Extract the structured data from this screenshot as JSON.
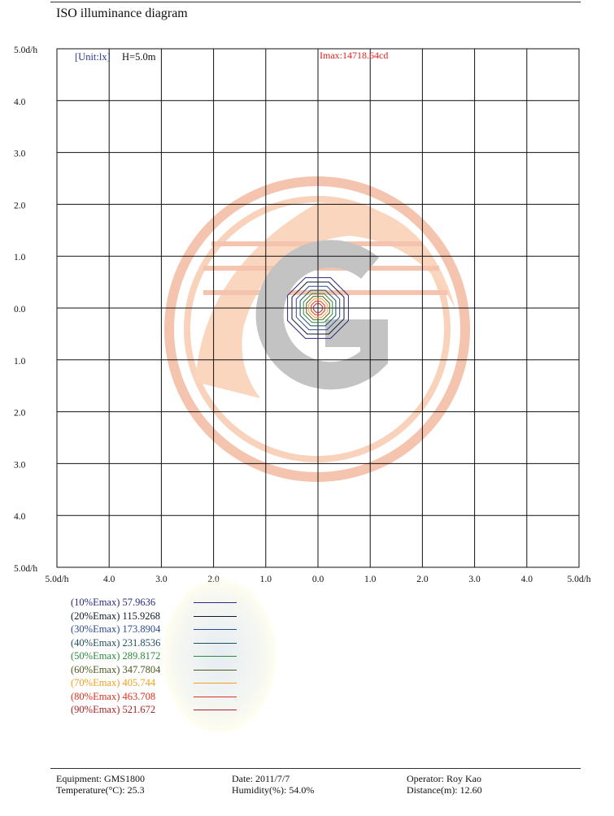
{
  "page_title": "ISO illuminance diagram",
  "header": {
    "unit_label": "[Unit:lx]",
    "height_label": "H=5.0m",
    "imax_label": "Imax:14718.64cd"
  },
  "chart_data": {
    "type": "contour",
    "title": "ISO illuminance diagram",
    "x_ticks": [
      "5.0d/h",
      "4.0",
      "3.0",
      "2.0",
      "1.0",
      "0.0",
      "1.0",
      "2.0",
      "3.0",
      "4.0",
      "5.0d/h"
    ],
    "y_ticks": [
      "5.0d/h",
      "4.0",
      "3.0",
      "2.0",
      "1.0",
      "0.0",
      "1.0",
      "2.0",
      "3.0",
      "4.0",
      "5.0d/h"
    ],
    "xlim": [
      -5,
      5
    ],
    "ylim": [
      -5,
      5
    ],
    "grid": true,
    "center": [
      0,
      0
    ],
    "contours": [
      {
        "level": "(10%Emax)",
        "value": "57.9636",
        "radius": 0.63,
        "color": "#2a2a80"
      },
      {
        "level": "(20%Emax)",
        "value": "115.9268",
        "radius": 0.54,
        "color": "#101828"
      },
      {
        "level": "(30%Emax)",
        "value": "173.8904",
        "radius": 0.45,
        "color": "#2a4a90"
      },
      {
        "level": "(40%Emax)",
        "value": "231.8536",
        "radius": 0.37,
        "color": "#1f4f5f"
      },
      {
        "level": "(50%Emax)",
        "value": "289.8172",
        "radius": 0.3,
        "color": "#2c8a3a"
      },
      {
        "level": "(60%Emax)",
        "value": "347.7804",
        "radius": 0.24,
        "color": "#4a5a20"
      },
      {
        "level": "(70%Emax)",
        "value": "405.744",
        "radius": 0.19,
        "color": "#f0a020"
      },
      {
        "level": "(80%Emax)",
        "value": "463.708",
        "radius": 0.14,
        "color": "#e03020"
      },
      {
        "level": "(90%Emax)",
        "value": "521.672",
        "radius": 0.09,
        "color": "#b02020"
      }
    ]
  },
  "footer": {
    "equipment": "Equipment: GMS1800",
    "temperature": "Temperature(°C): 25.3",
    "date": "Date: 2011/7/7",
    "humidity": "Humidity(%): 54.0%",
    "operator": "Operator: Roy Kao",
    "distance": "Distance(m): 12.60"
  }
}
